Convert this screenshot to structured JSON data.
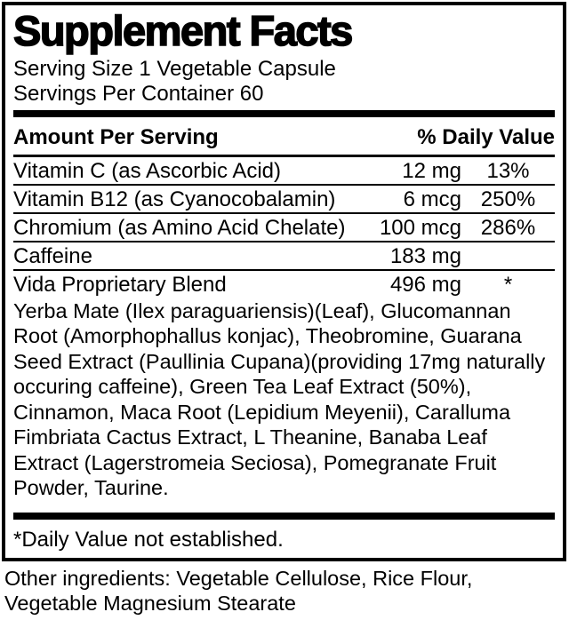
{
  "label": {
    "title": "Supplement Facts",
    "serving_size": "Serving Size 1 Vegetable Capsule",
    "servings_per_container": "Servings Per Container 60",
    "header": {
      "amount_per_serving": "Amount Per Serving",
      "percent_daily_value": "% Daily Value"
    },
    "rows": [
      {
        "name": "Vitamin C (as Ascorbic Acid)",
        "amount": "12 mg",
        "dv": "13%"
      },
      {
        "name": "Vitamin B12 (as Cyanocobalamin)",
        "amount": "6 mcg",
        "dv": "250%"
      },
      {
        "name": "Chromium (as Amino Acid Chelate)",
        "amount": "100 mcg",
        "dv": "286%"
      },
      {
        "name": "Caffeine",
        "amount": "183 mg",
        "dv": ""
      },
      {
        "name": "Vida Proprietary Blend",
        "amount": "496 mg",
        "dv": "*"
      }
    ],
    "blend_description": "Yerba Mate (Ilex paraguariensis)(Leaf), Glucomannan Root (Amorphophallus konjac), Theobromine, Guarana Seed Extract (Paullinia Cupana)(providing 17mg naturally occuring caffeine), Green Tea Leaf Extract (50%), Cinnamon, Maca Root (Lepidium Meyenii), Caralluma Fimbriata Cactus Extract, L Theanine, Banaba Leaf Extract (Lagerstromeia Seciosa), Pomegranate Fruit Powder, Taurine.",
    "footnote": "*Daily Value not established.",
    "other_ingredients": "Other ingredients: Vegetable Cellulose, Rice Flour, Vegetable Magnesium Stearate"
  },
  "colors": {
    "text": "#000000",
    "background": "#ffffff",
    "rule": "#000000"
  }
}
